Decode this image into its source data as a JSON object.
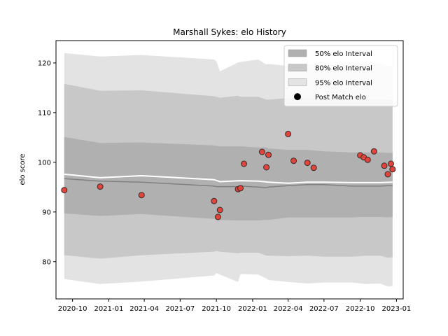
{
  "chart_data": {
    "type": "line",
    "title": "Marshall Sykes: elo History",
    "xlabel": "",
    "ylabel": "elo score",
    "x_axis_type": "date",
    "xlim": [
      "2020-08-20",
      "2023-01-18"
    ],
    "ylim": [
      72.5,
      124.5
    ],
    "x_ticks": [
      "2020-10",
      "2021-01",
      "2021-04",
      "2021-07",
      "2021-10",
      "2022-01",
      "2022-04",
      "2022-07",
      "2022-10",
      "2023-01"
    ],
    "x_tick_dates": [
      "2020-10-01",
      "2021-01-01",
      "2021-04-01",
      "2021-07-01",
      "2021-10-01",
      "2022-01-01",
      "2022-04-01",
      "2022-07-01",
      "2022-10-01",
      "2023-01-01"
    ],
    "y_ticks": [
      80,
      90,
      100,
      110,
      120
    ],
    "grid": false,
    "legend_position": "top-right",
    "legend": [
      {
        "label": "50% elo Interval",
        "kind": "band",
        "color": "#b0b0b0"
      },
      {
        "label": "80% elo Interval",
        "kind": "band",
        "color": "#c8c8c8"
      },
      {
        "label": "95% elo Interval",
        "kind": "band",
        "color": "#e3e3e3"
      },
      {
        "label": "Post Match elo",
        "kind": "marker",
        "color": "#000000"
      }
    ],
    "colors": {
      "band_50": "#b0b0b0",
      "band_80": "#c8c8c8",
      "band_95": "#e3e3e3",
      "mean_line": "#808080",
      "median_line": "#ffffff",
      "point_fill": "#e0443a",
      "point_edge": "#3a2a2a"
    },
    "bands": {
      "dates": [
        "2020-09-10",
        "2020-12-10",
        "2021-03-25",
        "2021-09-25",
        "2021-10-01",
        "2021-10-10",
        "2021-11-25",
        "2021-12-01",
        "2022-01-15",
        "2022-02-05",
        "2022-02-10",
        "2022-04-01",
        "2022-05-20",
        "2022-07-01",
        "2022-09-10",
        "2022-10-15",
        "2022-11-20",
        "2022-12-10",
        "2022-12-22"
      ],
      "lo95": [
        76.5,
        75.5,
        76.0,
        77.2,
        77.7,
        77.4,
        75.9,
        77.5,
        77.4,
        76.6,
        76.3,
        75.9,
        75.6,
        75.8,
        75.8,
        75.5,
        75.6,
        75.0,
        75.1
      ],
      "lo80": [
        81.3,
        80.6,
        81.3,
        82.0,
        82.2,
        82.0,
        81.7,
        81.8,
        81.8,
        81.2,
        81.2,
        81.1,
        81.2,
        81.0,
        81.0,
        81.2,
        81.2,
        80.8,
        80.9
      ],
      "lo50": [
        89.7,
        89.2,
        89.6,
        88.6,
        88.5,
        88.4,
        88.3,
        88.3,
        88.3,
        88.4,
        88.4,
        88.9,
        88.9,
        88.9,
        88.9,
        89.0,
        89.0,
        88.9,
        89.0
      ],
      "mid": [
        96.7,
        96.2,
        96.0,
        95.2,
        95.1,
        95.1,
        95.1,
        95.2,
        95.0,
        94.9,
        95.0,
        95.3,
        95.5,
        95.5,
        95.2,
        95.2,
        95.2,
        95.3,
        95.3
      ],
      "hi50": [
        105.1,
        103.9,
        104.0,
        103.4,
        103.3,
        103.2,
        103.2,
        103.2,
        103.0,
        103.0,
        102.8,
        102.5,
        102.5,
        102.2,
        102.0,
        102.0,
        102.0,
        101.9,
        101.9
      ],
      "hi80": [
        115.8,
        114.4,
        114.5,
        113.3,
        113.2,
        113.0,
        113.4,
        113.2,
        113.2,
        112.6,
        112.6,
        112.9,
        113.0,
        112.8,
        112.8,
        112.8,
        112.7,
        112.6,
        112.6
      ],
      "hi95": [
        122.0,
        121.3,
        121.6,
        120.7,
        120.4,
        118.3,
        120.1,
        120.2,
        120.7,
        119.7,
        119.8,
        119.4,
        119.7,
        119.6,
        119.6,
        119.8,
        119.8,
        119.4,
        119.4
      ]
    },
    "series": [
      {
        "kind": "median_line",
        "x": [
          "2020-09-10",
          "2020-12-10",
          "2021-03-25",
          "2021-09-25",
          "2021-10-10",
          "2021-12-01",
          "2022-01-15",
          "2022-02-10",
          "2022-04-01",
          "2022-05-20",
          "2022-07-01",
          "2022-09-10",
          "2022-11-20",
          "2022-12-22"
        ],
        "y": [
          97.6,
          96.9,
          97.3,
          96.5,
          96.1,
          96.3,
          96.2,
          96.0,
          95.8,
          96.0,
          96.0,
          95.9,
          95.9,
          96.0
        ]
      },
      {
        "name": "Post Match elo",
        "kind": "points",
        "x": [
          "2020-09-10",
          "2020-12-10",
          "2021-03-25",
          "2021-09-25",
          "2021-10-05",
          "2021-10-10",
          "2021-11-25",
          "2021-12-01",
          "2021-12-10",
          "2022-01-25",
          "2022-02-05",
          "2022-02-10",
          "2022-04-01",
          "2022-04-15",
          "2022-05-20",
          "2022-06-05",
          "2022-10-01",
          "2022-10-10",
          "2022-10-20",
          "2022-11-05",
          "2022-12-01",
          "2022-12-10",
          "2022-12-18",
          "2022-12-22"
        ],
        "y": [
          94.4,
          95.1,
          93.4,
          92.2,
          89.0,
          90.4,
          94.6,
          94.8,
          99.7,
          102.1,
          99.0,
          101.5,
          105.7,
          100.3,
          99.9,
          98.9,
          101.4,
          101.0,
          100.5,
          102.2,
          99.3,
          97.6,
          99.7,
          98.6
        ]
      }
    ]
  }
}
